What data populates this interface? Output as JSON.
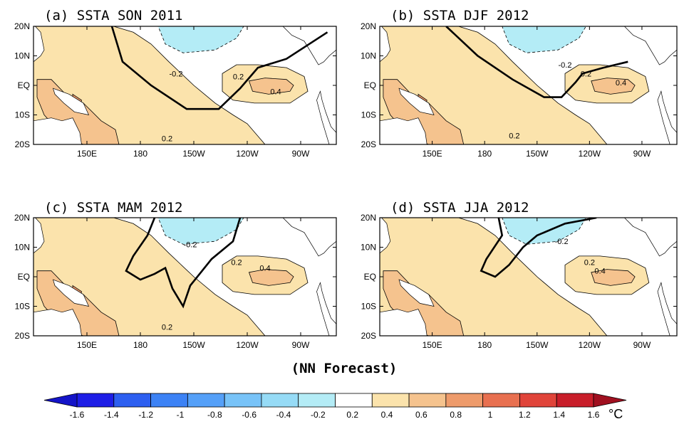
{
  "footer_label": "(NN Forecast)",
  "colors": {
    "warm_02_04": "#fbe3ac",
    "warm_04_06": "#f5c38e",
    "warm_06_08": "#ee9b6b",
    "cool_m04_m02": "#b4ecf6",
    "neutral": "#ffffff",
    "land": "#ffffff"
  },
  "axes": {
    "lon_labels": [
      "150E",
      "180",
      "150W",
      "120W",
      "90W"
    ],
    "lat_labels": [
      "20N",
      "10N",
      "EQ",
      "10S",
      "20S"
    ]
  },
  "panels": [
    {
      "id": "a",
      "title": "(a) SSTA  SON 2011",
      "contour_labels": [
        {
          "text": "-0.2",
          "lon": -160,
          "lat": 4
        },
        {
          "text": "0.2",
          "lon": -125,
          "lat": 3
        },
        {
          "text": "0.4",
          "lon": -104,
          "lat": -2
        },
        {
          "text": "0.2",
          "lon": -165,
          "lat": -18
        }
      ]
    },
    {
      "id": "b",
      "title": "(b) SSTA  DJF 2012",
      "contour_labels": [
        {
          "text": "-0.2",
          "lon": -134,
          "lat": 7
        },
        {
          "text": "0.2",
          "lon": -122,
          "lat": 4
        },
        {
          "text": "0.4",
          "lon": -102,
          "lat": 1
        },
        {
          "text": "0.2",
          "lon": -163,
          "lat": -17
        }
      ]
    },
    {
      "id": "c",
      "title": "(c) SSTA  MAM 2012",
      "contour_labels": [
        {
          "text": "-0.2",
          "lon": -152,
          "lat": 11
        },
        {
          "text": "0.2",
          "lon": -126,
          "lat": 5
        },
        {
          "text": "0.4",
          "lon": -110,
          "lat": 3
        },
        {
          "text": "0.2",
          "lon": -165,
          "lat": -17
        }
      ]
    },
    {
      "id": "d",
      "title": "(d) SSTA  JJA 2012",
      "contour_labels": [
        {
          "text": "-0.2",
          "lon": -136,
          "lat": 12
        },
        {
          "text": "0.2",
          "lon": -120,
          "lat": 5
        },
        {
          "text": "0.4",
          "lon": -114,
          "lat": 2
        }
      ]
    }
  ],
  "colorbar": {
    "unit": "°C",
    "tick_labels": [
      "-1.6",
      "-1.4",
      "-1.2",
      "-1",
      "-0.8",
      "-0.6",
      "-0.4",
      "-0.2",
      "0.2",
      "0.4",
      "0.6",
      "0.8",
      "1",
      "1.2",
      "1.4",
      "1.6"
    ],
    "colors": [
      "#1e1ee6",
      "#2d5ff0",
      "#3c82f5",
      "#55a0f8",
      "#78c3f8",
      "#96dbf6",
      "#b4ecf6",
      "#ffffff",
      "#fbe3ac",
      "#f5c38e",
      "#ee9b6b",
      "#e87050",
      "#e0443a",
      "#c81e2a"
    ],
    "under_color": "#1414c8",
    "over_color": "#a01020"
  }
}
